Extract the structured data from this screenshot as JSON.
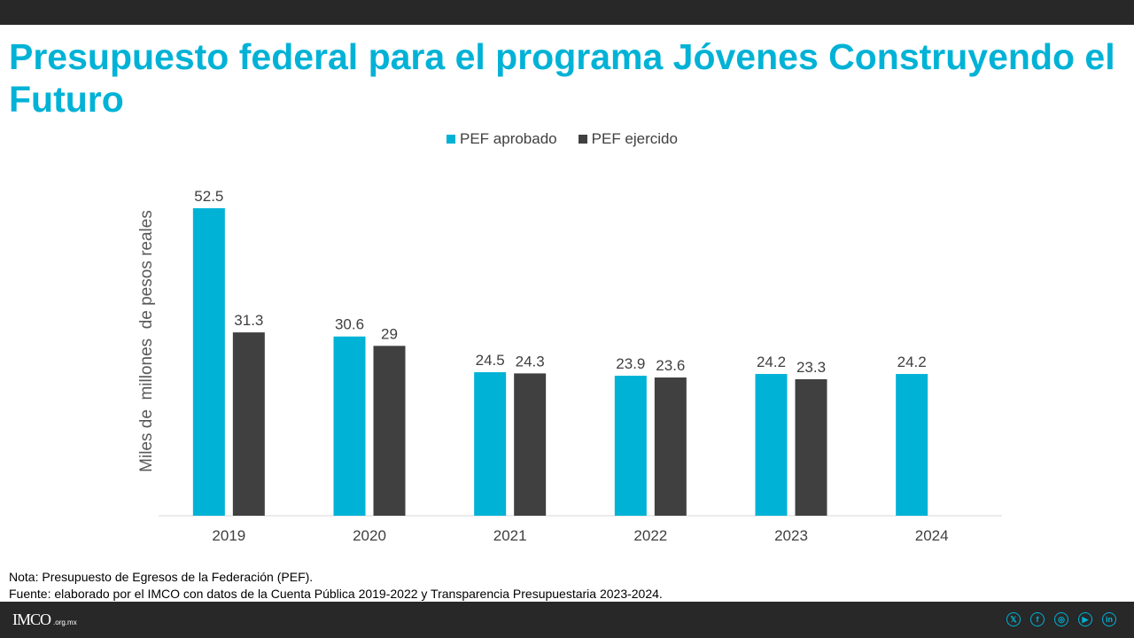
{
  "title": "Presupuesto federal para el programa Jóvenes Construyendo el Futuro",
  "legend": {
    "approved": "PEF aprobado",
    "exercised": "PEF ejercido"
  },
  "colors": {
    "approved": "#00b2d6",
    "exercised": "#404040",
    "title": "#00b2d6"
  },
  "chart_data": {
    "type": "bar",
    "title": "Presupuesto federal para el programa Jóvenes Construyendo el Futuro",
    "xlabel": "",
    "ylabel": "Miles de  millones  de pesos reales",
    "ylim": [
      0,
      55
    ],
    "grid": false,
    "legend_position": "top-center",
    "categories": [
      "2019",
      "2020",
      "2021",
      "2022",
      "2023",
      "2024"
    ],
    "series": [
      {
        "name": "PEF aprobado",
        "values": [
          52.5,
          30.6,
          24.5,
          23.9,
          24.2,
          24.2
        ]
      },
      {
        "name": "PEF ejercido",
        "values": [
          31.3,
          29,
          24.3,
          23.6,
          23.3,
          null
        ]
      }
    ]
  },
  "notes": {
    "nota": "Nota: Presupuesto de Egresos de la Federación (PEF).",
    "fuente": "Fuente: elaborado por el IMCO con datos de la Cuenta Pública 2019-2022 y Transparencia Presupuestaria 2023-2024."
  },
  "footer": {
    "logo_text": "IMCO",
    "logo_domain": ".org.mx",
    "social": [
      {
        "name": "x-icon",
        "glyph": "𝕏"
      },
      {
        "name": "facebook-icon",
        "glyph": "f"
      },
      {
        "name": "instagram-icon",
        "glyph": "◎"
      },
      {
        "name": "youtube-icon",
        "glyph": "▶"
      },
      {
        "name": "linkedin-icon",
        "glyph": "in"
      }
    ]
  }
}
